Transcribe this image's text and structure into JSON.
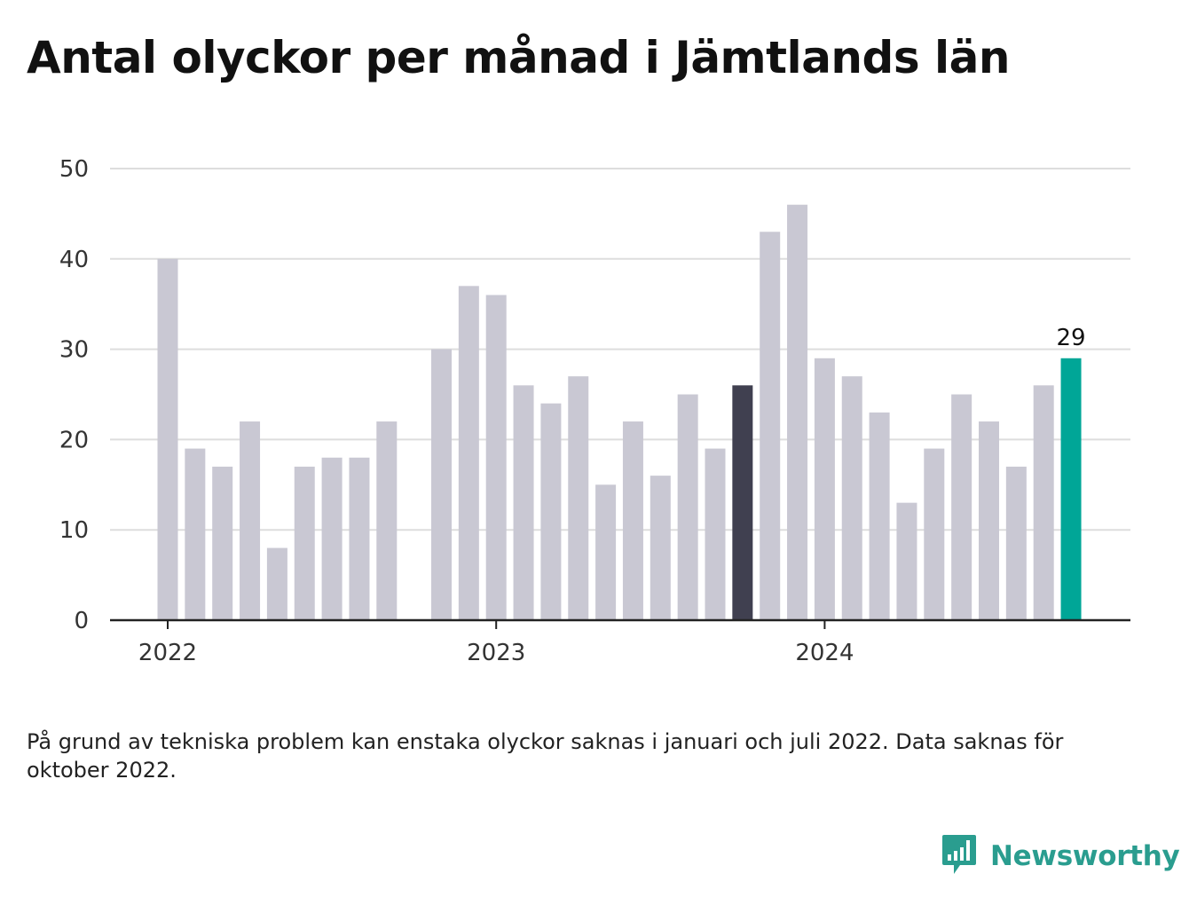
{
  "title": "Antal olyckor per månad i Jämtlands län",
  "footnote": "På grund av tekniska problem kan enstaka olyckor saknas i januari och juli 2022. Data saknas för oktober 2022.",
  "brand": {
    "name": "Newsworthy",
    "icon": "newsworthy-logo-icon",
    "color": "#2a9d8f"
  },
  "colors": {
    "bar": "#c9c8d3",
    "highlight_dark": "#404050",
    "highlight_latest": "#00a697",
    "grid": "#dddddd",
    "axis": "#222222"
  },
  "chart_data": {
    "type": "bar",
    "title": "Antal olyckor per månad i Jämtlands län",
    "xlabel": "",
    "ylabel": "",
    "ylim": [
      0,
      50
    ],
    "yticks": [
      0,
      10,
      20,
      30,
      40,
      50
    ],
    "grid": true,
    "x_tick_labels": [
      {
        "label": "2022",
        "category": "2022-01"
      },
      {
        "label": "2023",
        "category": "2023-01"
      },
      {
        "label": "2024",
        "category": "2024-01"
      }
    ],
    "categories": [
      "2022-01",
      "2022-02",
      "2022-03",
      "2022-04",
      "2022-05",
      "2022-06",
      "2022-07",
      "2022-08",
      "2022-09",
      "2022-10",
      "2022-11",
      "2022-12",
      "2023-01",
      "2023-02",
      "2023-03",
      "2023-04",
      "2023-05",
      "2023-06",
      "2023-07",
      "2023-08",
      "2023-09",
      "2023-10",
      "2023-11",
      "2023-12",
      "2024-01",
      "2024-02",
      "2024-03",
      "2024-04",
      "2024-05",
      "2024-06",
      "2024-07",
      "2024-08",
      "2024-09",
      "2024-10"
    ],
    "values": [
      40,
      19,
      17,
      22,
      8,
      17,
      18,
      18,
      22,
      null,
      30,
      37,
      36,
      26,
      24,
      27,
      15,
      22,
      16,
      25,
      19,
      26,
      43,
      46,
      29,
      27,
      23,
      13,
      19,
      25,
      22,
      17,
      26,
      29
    ],
    "highlights": [
      {
        "category": "2023-10",
        "color": "#404050"
      },
      {
        "category": "2024-10",
        "color": "#00a697",
        "label": "29"
      }
    ]
  }
}
